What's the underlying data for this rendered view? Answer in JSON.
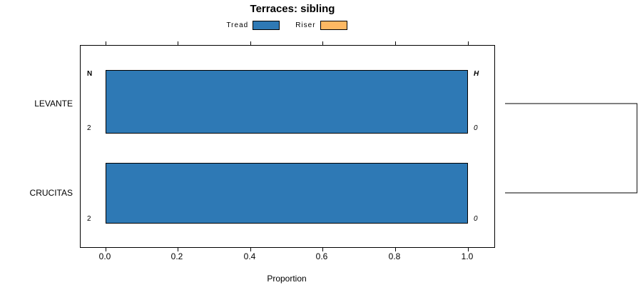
{
  "title": "Terraces: sibling",
  "legend": {
    "items": [
      {
        "label": "Tread",
        "color": "#2E79B5"
      },
      {
        "label": "Riser",
        "color": "#FDB863"
      }
    ]
  },
  "axis": {
    "xlabel": "Proportion",
    "xticks": [
      "0.0",
      "0.2",
      "0.4",
      "0.6",
      "0.8",
      "1.0"
    ]
  },
  "columns": {
    "left": "N",
    "right": "H"
  },
  "chart_data": {
    "type": "bar",
    "orientation": "horizontal",
    "title": "Terraces: sibling",
    "xlabel": "Proportion",
    "xlim": [
      0,
      1
    ],
    "xticks": [
      "0.0",
      "0.2",
      "0.4",
      "0.6",
      "0.8",
      "1.0"
    ],
    "categories": [
      "LEVANTE",
      "CRUCITAS"
    ],
    "series": [
      {
        "name": "Tread",
        "color": "#2E79B5",
        "values": [
          1.0,
          1.0
        ]
      },
      {
        "name": "Riser",
        "color": "#FDB863",
        "values": [
          0.0,
          0.0
        ]
      }
    ],
    "row_annotations": {
      "N": [
        "2",
        "2"
      ],
      "H": [
        "0",
        "0"
      ]
    },
    "legend_position": "top",
    "grid": false,
    "annotation": "sibling dendrogram bracket at right joining LEVANTE and CRUCITAS"
  }
}
